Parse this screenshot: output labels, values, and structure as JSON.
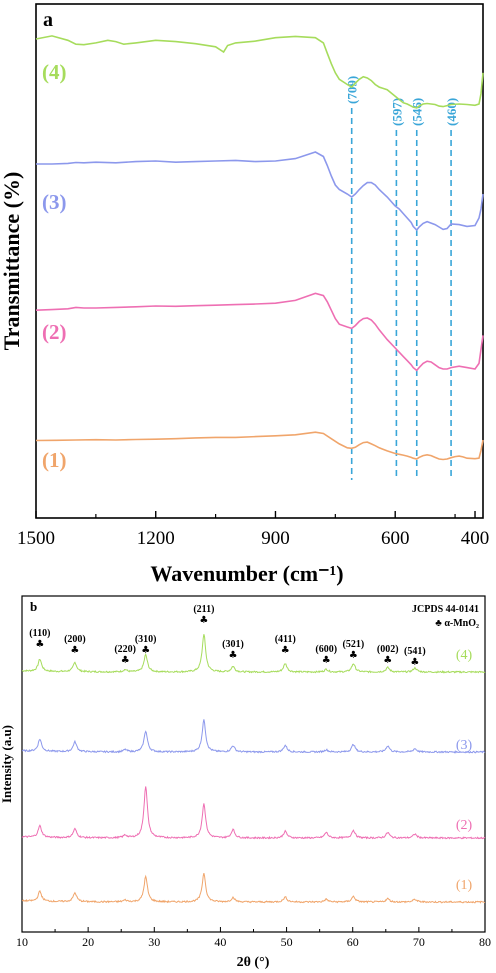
{
  "colors": {
    "s1": "#f0a56b",
    "s2": "#ee6fb3",
    "s3": "#8c98ec",
    "s4": "#a6dc5c",
    "peak_line": "#3aa6d8",
    "axis": "#000000"
  },
  "chart_data": [
    {
      "panel": "a",
      "type": "line",
      "xlabel": "Wavenumber (cm⁻¹)",
      "ylabel": "Transmittance (%)",
      "xlim": [
        1500,
        380
      ],
      "x_reversed": true,
      "x_ticks": [
        1500,
        1200,
        900,
        600,
        400
      ],
      "x_minor_ticks": [
        1350,
        1050,
        750,
        450
      ],
      "grid": false,
      "series_order": [
        "(4)",
        "(3)",
        "(2)",
        "(1)"
      ],
      "series": [
        {
          "name": "(4)",
          "color_key": "s4",
          "x": [
            1500,
            1460,
            1420,
            1400,
            1380,
            1350,
            1320,
            1300,
            1280,
            1250,
            1200,
            1150,
            1100,
            1050,
            1030,
            1020,
            1000,
            950,
            900,
            850,
            800,
            780,
            770,
            760,
            750,
            740,
            720,
            709,
            700,
            690,
            680,
            670,
            660,
            650,
            640,
            620,
            600,
            580,
            570,
            560,
            555,
            546,
            540,
            530,
            520,
            500,
            490,
            480,
            470,
            460,
            440,
            420,
            400,
            390,
            385,
            380
          ],
          "y": [
            1.5,
            1.62,
            1.45,
            1.3,
            1.28,
            1.35,
            1.45,
            1.4,
            1.3,
            1.35,
            1.45,
            1.4,
            1.32,
            1.2,
            1.0,
            1.25,
            1.35,
            1.42,
            1.55,
            1.6,
            1.55,
            1.35,
            0.95,
            0.55,
            0.2,
            -0.05,
            -0.25,
            -0.35,
            -0.2,
            -0.05,
            0.05,
            0.0,
            -0.1,
            -0.25,
            -0.35,
            -0.45,
            -0.7,
            -0.95,
            -1.0,
            -1.08,
            -1.12,
            -1.15,
            -1.08,
            -1.0,
            -0.98,
            -1.02,
            -1.08,
            -1.1,
            -1.06,
            -1.02,
            -1.0,
            -1.02,
            -1.05,
            -1.0,
            -0.6,
            0.2
          ]
        },
        {
          "name": "(3)",
          "color_key": "s3",
          "x": [
            1500,
            1460,
            1420,
            1400,
            1380,
            1350,
            1300,
            1250,
            1200,
            1150,
            1100,
            1050,
            1000,
            950,
            900,
            850,
            800,
            780,
            770,
            760,
            750,
            740,
            720,
            709,
            700,
            690,
            680,
            670,
            660,
            650,
            640,
            620,
            600,
            590,
            580,
            570,
            560,
            555,
            546,
            540,
            530,
            520,
            500,
            490,
            480,
            470,
            460,
            440,
            420,
            400,
            390,
            385,
            380
          ],
          "y": [
            1.3,
            1.3,
            1.32,
            1.35,
            1.34,
            1.36,
            1.34,
            1.38,
            1.4,
            1.36,
            1.38,
            1.4,
            1.42,
            1.38,
            1.4,
            1.48,
            1.7,
            1.55,
            1.25,
            0.9,
            0.6,
            0.45,
            0.3,
            0.2,
            0.3,
            0.45,
            0.58,
            0.68,
            0.68,
            0.6,
            0.45,
            0.2,
            -0.1,
            -0.2,
            -0.35,
            -0.5,
            -0.65,
            -0.78,
            -0.9,
            -0.8,
            -0.68,
            -0.62,
            -0.72,
            -0.8,
            -0.88,
            -0.85,
            -0.7,
            -0.72,
            -0.78,
            -0.75,
            -0.5,
            -0.2,
            0.3
          ]
        },
        {
          "name": "(2)",
          "color_key": "s2",
          "x": [
            1500,
            1460,
            1420,
            1400,
            1380,
            1350,
            1300,
            1250,
            1200,
            1150,
            1100,
            1050,
            1000,
            950,
            900,
            850,
            800,
            780,
            770,
            760,
            750,
            740,
            720,
            709,
            700,
            690,
            680,
            670,
            660,
            650,
            640,
            620,
            600,
            590,
            580,
            570,
            560,
            555,
            546,
            540,
            530,
            520,
            510,
            500,
            490,
            480,
            470,
            460,
            440,
            420,
            400,
            390,
            385,
            380
          ],
          "y": [
            1.1,
            1.12,
            1.15,
            1.2,
            1.18,
            1.18,
            1.2,
            1.22,
            1.25,
            1.24,
            1.26,
            1.28,
            1.3,
            1.32,
            1.35,
            1.45,
            1.7,
            1.62,
            1.4,
            1.1,
            0.8,
            0.6,
            0.5,
            0.45,
            0.55,
            0.7,
            0.8,
            0.82,
            0.75,
            0.6,
            0.4,
            0.05,
            -0.25,
            -0.4,
            -0.55,
            -0.7,
            -0.85,
            -0.95,
            -1.05,
            -0.95,
            -0.8,
            -0.72,
            -0.75,
            -0.85,
            -0.95,
            -1.0,
            -1.0,
            -0.95,
            -0.9,
            -0.95,
            -1.0,
            -0.8,
            -0.3,
            0.2
          ]
        },
        {
          "name": "(1)",
          "color_key": "s1",
          "x": [
            1500,
            1450,
            1400,
            1350,
            1300,
            1250,
            1200,
            1150,
            1100,
            1050,
            1000,
            950,
            900,
            850,
            800,
            780,
            760,
            740,
            720,
            709,
            700,
            690,
            680,
            670,
            660,
            650,
            640,
            620,
            600,
            590,
            580,
            570,
            560,
            555,
            546,
            540,
            530,
            520,
            510,
            500,
            490,
            480,
            470,
            460,
            450,
            440,
            430,
            420,
            400,
            390,
            385,
            380
          ],
          "y": [
            0.98,
            0.99,
            1.0,
            1.01,
            1.0,
            1.02,
            1.03,
            1.05,
            1.08,
            1.1,
            1.1,
            1.13,
            1.16,
            1.2,
            1.3,
            1.25,
            1.05,
            0.85,
            0.7,
            0.68,
            0.72,
            0.82,
            0.9,
            0.92,
            0.85,
            0.78,
            0.7,
            0.58,
            0.48,
            0.45,
            0.42,
            0.38,
            0.33,
            0.3,
            0.27,
            0.33,
            0.4,
            0.43,
            0.4,
            0.33,
            0.27,
            0.25,
            0.27,
            0.32,
            0.36,
            0.38,
            0.35,
            0.3,
            0.28,
            0.3,
            0.6,
            1.0
          ]
        }
      ],
      "series_labels": [
        "(4)",
        "(3)",
        "(2)",
        "(1)"
      ],
      "peak_lines": [
        709,
        597,
        546,
        460
      ],
      "peak_labels": [
        "(709)",
        "(597)",
        "(546)",
        "(460)"
      ]
    },
    {
      "panel": "b",
      "type": "line",
      "xlabel": "2θ (°)",
      "ylabel": "Intensity (a.u)",
      "xlim": [
        10,
        80
      ],
      "x_ticks": [
        10,
        20,
        30,
        40,
        50,
        60,
        70,
        80
      ],
      "grid": false,
      "reference": "JCPDS 44-0141",
      "phase_legend": "♣ α-MnO₂",
      "phase_symbol": "♣",
      "reflections": [
        {
          "hkl": "(110)",
          "two_theta": 12.7
        },
        {
          "hkl": "(200)",
          "two_theta": 18.0
        },
        {
          "hkl": "(220)",
          "two_theta": 25.6
        },
        {
          "hkl": "(310)",
          "two_theta": 28.7
        },
        {
          "hkl": "(211)",
          "two_theta": 37.5
        },
        {
          "hkl": "(301)",
          "two_theta": 41.9
        },
        {
          "hkl": "(411)",
          "two_theta": 49.8
        },
        {
          "hkl": "(600)",
          "two_theta": 56.0
        },
        {
          "hkl": "(521)",
          "two_theta": 60.1
        },
        {
          "hkl": "(002)",
          "two_theta": 65.3
        },
        {
          "hkl": "(541)",
          "two_theta": 69.4
        }
      ],
      "series_labels": [
        "(4)",
        "(3)",
        "(2)",
        "(1)"
      ],
      "series": [
        {
          "name": "(4)",
          "color_key": "s4",
          "baseline": 0.0,
          "peaks": [
            [
              12.7,
              0.55
            ],
            [
              18.0,
              0.42
            ],
            [
              25.6,
              0.1
            ],
            [
              28.7,
              0.78
            ],
            [
              37.5,
              1.7
            ],
            [
              41.9,
              0.25
            ],
            [
              49.8,
              0.38
            ],
            [
              56.0,
              0.12
            ],
            [
              60.1,
              0.38
            ],
            [
              65.3,
              0.2
            ],
            [
              69.4,
              0.18
            ]
          ]
        },
        {
          "name": "(3)",
          "color_key": "s3",
          "baseline": 0.0,
          "peaks": [
            [
              12.7,
              0.55
            ],
            [
              18.0,
              0.45
            ],
            [
              25.6,
              0.1
            ],
            [
              28.7,
              0.95
            ],
            [
              37.5,
              1.45
            ],
            [
              41.9,
              0.28
            ],
            [
              49.8,
              0.3
            ],
            [
              56.0,
              0.1
            ],
            [
              60.1,
              0.35
            ],
            [
              65.3,
              0.28
            ],
            [
              69.4,
              0.15
            ]
          ]
        },
        {
          "name": "(2)",
          "color_key": "s2",
          "baseline": 0.0,
          "peaks": [
            [
              12.7,
              0.52
            ],
            [
              18.0,
              0.4
            ],
            [
              25.6,
              0.12
            ],
            [
              28.7,
              2.35
            ],
            [
              37.5,
              1.55
            ],
            [
              41.9,
              0.38
            ],
            [
              49.8,
              0.3
            ],
            [
              56.0,
              0.25
            ],
            [
              60.1,
              0.35
            ],
            [
              65.3,
              0.25
            ],
            [
              69.4,
              0.18
            ]
          ]
        },
        {
          "name": "(1)",
          "color_key": "s1",
          "baseline": 0.0,
          "peaks": [
            [
              12.7,
              0.45
            ],
            [
              18.0,
              0.4
            ],
            [
              25.6,
              0.08
            ],
            [
              28.7,
              1.15
            ],
            [
              37.5,
              1.3
            ],
            [
              41.9,
              0.2
            ],
            [
              49.8,
              0.22
            ],
            [
              56.0,
              0.12
            ],
            [
              60.1,
              0.25
            ],
            [
              65.3,
              0.15
            ],
            [
              69.4,
              0.12
            ]
          ]
        }
      ]
    }
  ]
}
